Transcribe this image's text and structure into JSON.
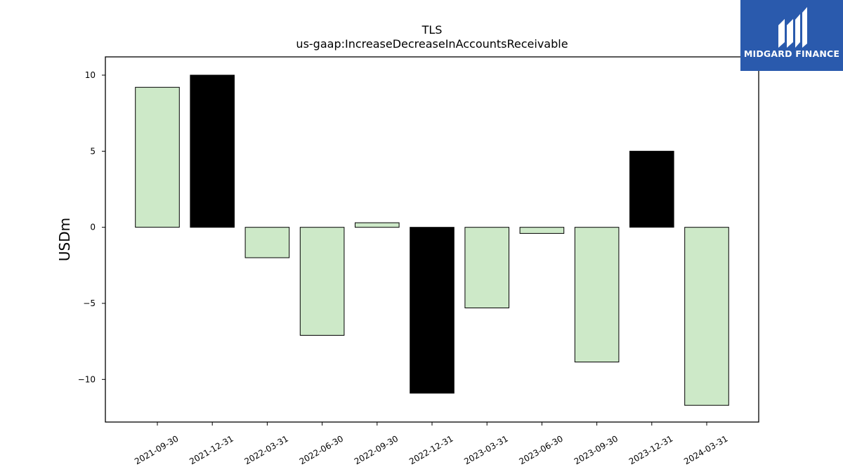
{
  "chart_data": {
    "type": "bar",
    "title": "TLS",
    "subtitle": "us-gaap:IncreaseDecreaseInAccountsReceivable",
    "xlabel": "",
    "ylabel": "USDm",
    "ylim": [
      -12.8,
      11.2
    ],
    "yticks": [
      10,
      5,
      0,
      -5,
      -10
    ],
    "grid": false,
    "categories": [
      "2021-09-30",
      "2021-12-31",
      "2022-03-31",
      "2022-06-30",
      "2022-09-30",
      "2022-12-31",
      "2023-03-31",
      "2023-06-30",
      "2023-09-30",
      "2023-12-31",
      "2024-03-31"
    ],
    "values": [
      9.2,
      10.0,
      -2.0,
      -7.1,
      0.3,
      -10.9,
      -5.3,
      -0.4,
      -8.85,
      5.0,
      -11.7
    ],
    "bar_colors": [
      "#cde9c8",
      "#000000",
      "#cde9c8",
      "#cde9c8",
      "#cde9c8",
      "#000000",
      "#cde9c8",
      "#cde9c8",
      "#cde9c8",
      "#000000",
      "#cde9c8"
    ]
  },
  "brand": {
    "name": "MIDGARD FINANCE",
    "color": "#2a5aad"
  }
}
